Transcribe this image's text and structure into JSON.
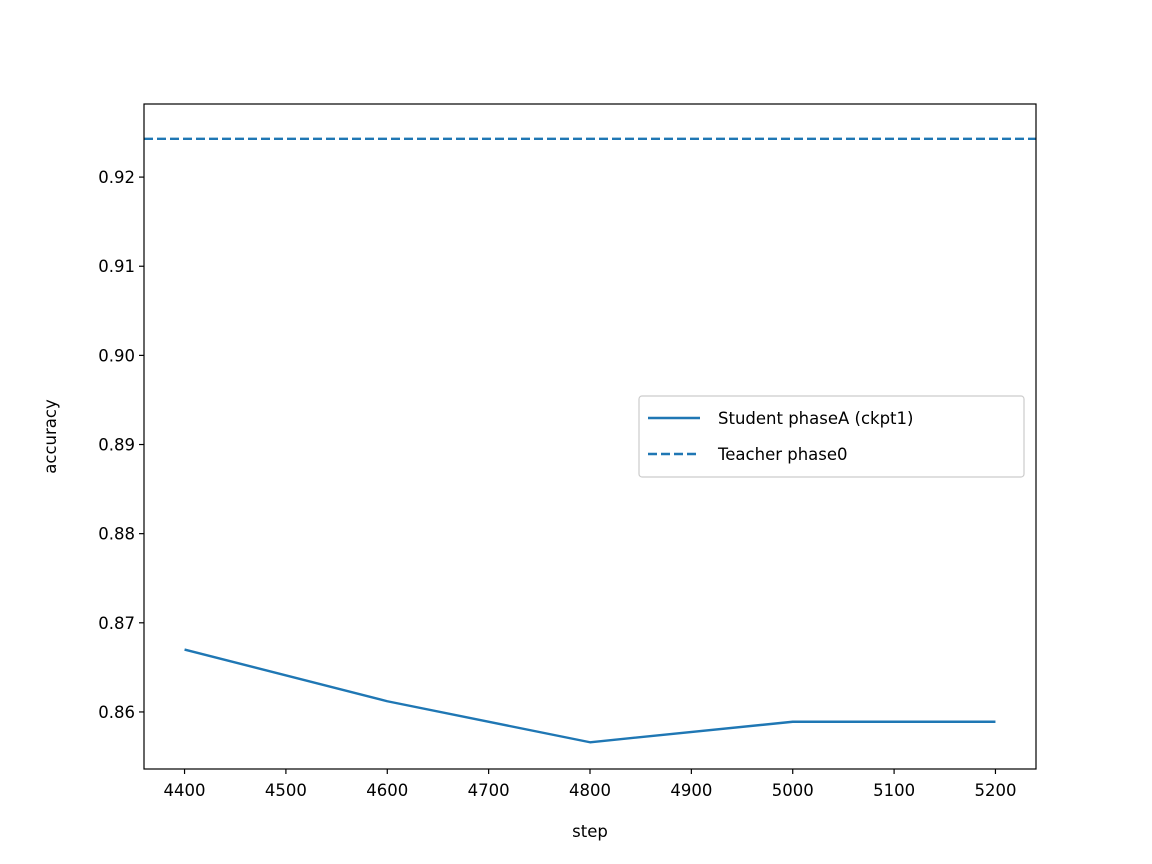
{
  "chart_data": {
    "type": "line",
    "title": "",
    "xlabel": "step",
    "ylabel": "accuracy",
    "xlim": [
      4360,
      5240
    ],
    "ylim": [
      0.8536,
      0.9282
    ],
    "xticks": [
      4400,
      4500,
      4600,
      4700,
      4800,
      4900,
      5000,
      5100,
      5200
    ],
    "xtick_labels": [
      "4400",
      "4500",
      "4600",
      "4700",
      "4800",
      "4900",
      "5000",
      "5100",
      "5200"
    ],
    "yticks": [
      0.86,
      0.87,
      0.88,
      0.89,
      0.9,
      0.91,
      0.92
    ],
    "ytick_labels": [
      "0.86",
      "0.87",
      "0.88",
      "0.89",
      "0.90",
      "0.91",
      "0.92"
    ],
    "grid": false,
    "legend_position": "center-right",
    "series": [
      {
        "name": "Student phaseA (ckpt1)",
        "style": "solid",
        "color": "#1f77b4",
        "x": [
          4400,
          4600,
          4800,
          5000,
          5200
        ],
        "y": [
          0.867,
          0.8612,
          0.8566,
          0.8589,
          0.8589
        ]
      },
      {
        "name": "Teacher phase0",
        "style": "dashed",
        "color": "#1f77b4",
        "hline": 0.9243
      }
    ]
  }
}
